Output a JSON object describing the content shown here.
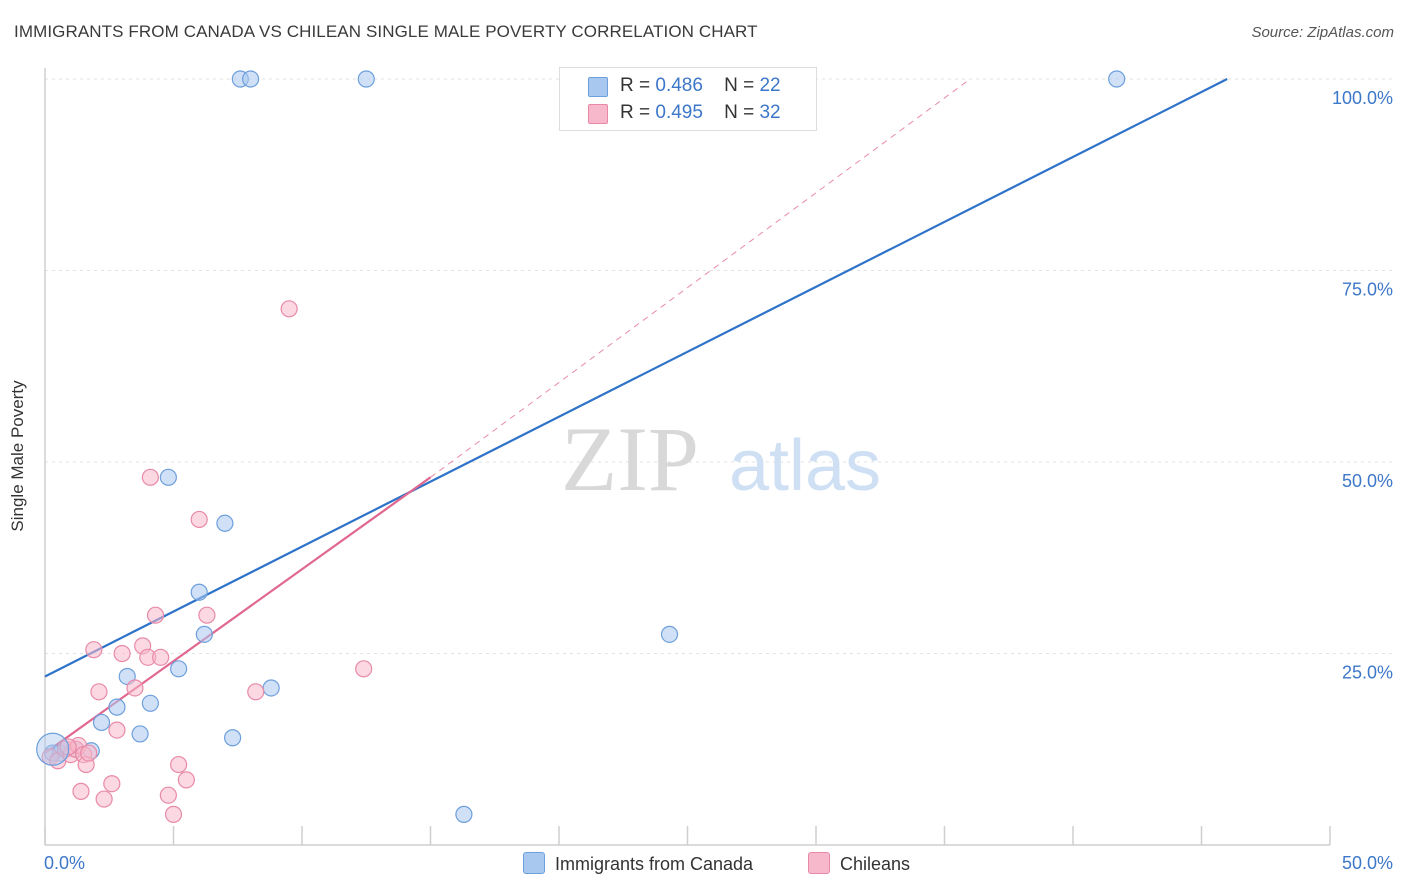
{
  "title": "IMMIGRANTS FROM CANADA VS CHILEAN SINGLE MALE POVERTY CORRELATION CHART",
  "source": "Source: ZipAtlas.com",
  "watermark": {
    "zip": "ZIP",
    "atlas": "atlas"
  },
  "colors": {
    "blue_fill": "#a9c8f0",
    "blue_stroke": "#6d9fdc",
    "blue_line": "#2e73c9",
    "pink_fill": "#f7b8cb",
    "pink_stroke": "#e88aa7",
    "pink_line": "#e0678f",
    "axis_text": "#3d77c9",
    "grid": "#e2e2e2"
  },
  "legend": {
    "r_label": "R =",
    "n_label": "N =",
    "series1": {
      "r": "0.486",
      "n": "22"
    },
    "series2": {
      "r": "0.495",
      "n": "32"
    }
  },
  "chart_data": {
    "type": "scatter",
    "title": "IMMIGRANTS FROM CANADA VS CHILEAN SINGLE MALE POVERTY CORRELATION CHART",
    "xlabel": "",
    "ylabel": "Single Male Poverty",
    "xlim": [
      0,
      50
    ],
    "ylim": [
      0,
      100
    ],
    "x_tick_labels": [
      "0.0%",
      "50.0%"
    ],
    "y_tick_labels": [
      "25.0%",
      "50.0%",
      "75.0%",
      "100.0%"
    ],
    "y_ticks": [
      25,
      50,
      75,
      100
    ],
    "series": [
      {
        "name": "Immigrants from Canada",
        "color": "blue",
        "points": [
          [
            0.3,
            12.0
          ],
          [
            1.2,
            12.5
          ],
          [
            1.8,
            12.3
          ],
          [
            2.2,
            16.0
          ],
          [
            2.8,
            18.0
          ],
          [
            3.2,
            22.0
          ],
          [
            3.7,
            14.5
          ],
          [
            4.1,
            18.5
          ],
          [
            4.8,
            48.0
          ],
          [
            5.2,
            23.0
          ],
          [
            6.0,
            33.0
          ],
          [
            6.2,
            27.5
          ],
          [
            7.0,
            42.0
          ],
          [
            7.3,
            14.0
          ],
          [
            7.6,
            100.0
          ],
          [
            8.0,
            100.0
          ],
          [
            8.8,
            20.5
          ],
          [
            12.5,
            100.0
          ],
          [
            16.3,
            4.0
          ],
          [
            24.3,
            27.5
          ],
          [
            41.7,
            100.0
          ],
          [
            0.6,
            12.0
          ]
        ],
        "trendline": {
          "x": [
            0,
            46
          ],
          "y": [
            22,
            100
          ]
        }
      },
      {
        "name": "Chileans",
        "color": "pink",
        "points": [
          [
            0.2,
            11.5
          ],
          [
            0.5,
            11.0
          ],
          [
            0.8,
            12.5
          ],
          [
            1.0,
            11.8
          ],
          [
            1.2,
            12.5
          ],
          [
            1.3,
            13.0
          ],
          [
            1.4,
            7.0
          ],
          [
            1.5,
            11.8
          ],
          [
            1.6,
            10.5
          ],
          [
            1.9,
            25.5
          ],
          [
            2.1,
            20.0
          ],
          [
            2.3,
            6.0
          ],
          [
            2.6,
            8.0
          ],
          [
            3.0,
            25.0
          ],
          [
            3.5,
            20.5
          ],
          [
            2.8,
            15.0
          ],
          [
            3.8,
            26.0
          ],
          [
            4.0,
            24.5
          ],
          [
            4.1,
            48.0
          ],
          [
            4.3,
            30.0
          ],
          [
            4.5,
            24.5
          ],
          [
            4.8,
            6.5
          ],
          [
            5.0,
            4.0
          ],
          [
            5.2,
            10.5
          ],
          [
            5.5,
            8.5
          ],
          [
            6.0,
            42.5
          ],
          [
            6.3,
            30.0
          ],
          [
            8.2,
            20.0
          ],
          [
            9.5,
            70.0
          ],
          [
            12.4,
            23.0
          ],
          [
            1.7,
            12.0
          ],
          [
            0.9,
            12.8
          ]
        ],
        "trendline": {
          "x": [
            0,
            15
          ],
          "y": [
            12,
            48
          ]
        },
        "trendline_dashed": {
          "x": [
            15,
            36
          ],
          "y": [
            48,
            100
          ]
        }
      }
    ]
  }
}
